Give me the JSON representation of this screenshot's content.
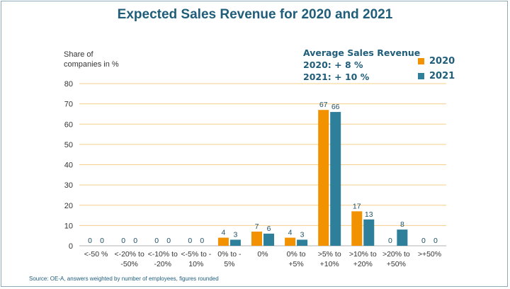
{
  "chart_data": {
    "type": "bar",
    "title": "Expected Sales Revenue for 2020 and 2021",
    "ylabel_lines": [
      "Share of",
      "companies in %"
    ],
    "xlabel": "",
    "ylim": [
      0,
      80
    ],
    "yticks": [
      0,
      10,
      20,
      30,
      40,
      50,
      60,
      70,
      80
    ],
    "grid": true,
    "legend_position": "top-right",
    "categories": [
      [
        "<-50 %"
      ],
      [
        "<-20% to",
        "-50%"
      ],
      [
        "<-10% to",
        "-20%"
      ],
      [
        "<-5% to -",
        "10%"
      ],
      [
        "0% to -",
        "5%"
      ],
      [
        "0%"
      ],
      [
        "0% to",
        "+5%"
      ],
      [
        ">5% to",
        "+10%"
      ],
      [
        ">10% to",
        "+20%"
      ],
      [
        ">20% to",
        "+50%"
      ],
      [
        ">+50%"
      ]
    ],
    "series": [
      {
        "name": "2020",
        "color": "#f39200",
        "values": [
          0,
          0,
          0,
          0,
          4,
          7,
          4,
          67,
          17,
          0,
          0
        ]
      },
      {
        "name": "2021",
        "color": "#2e7f99",
        "values": [
          0,
          0,
          0,
          0,
          3,
          6,
          3,
          66,
          13,
          8,
          0
        ]
      }
    ],
    "annotation": {
      "heading": "Average Sales Revenue",
      "lines": [
        "2020: + 8 %",
        "2021: + 10 %"
      ]
    }
  },
  "source": "Source: OE-A, answers weighted by number of employees, figures rounded",
  "colors": {
    "title": "#1f5d7a",
    "grid": "#f5d08a",
    "axis": "#b0b0b0"
  }
}
